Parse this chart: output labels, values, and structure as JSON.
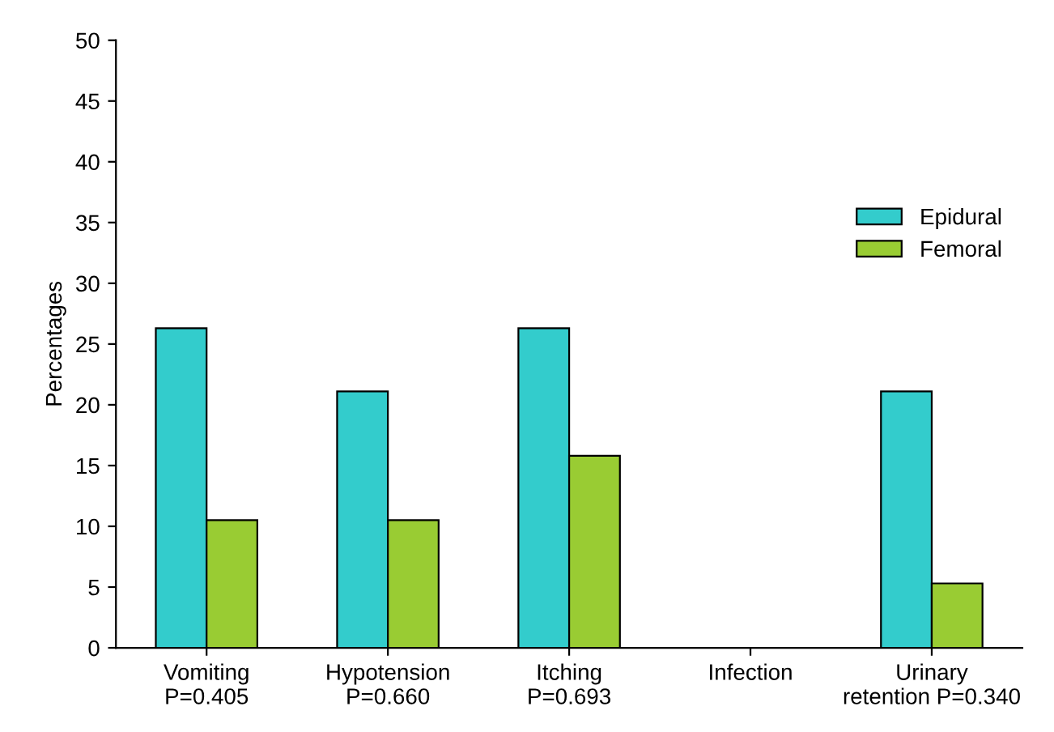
{
  "chart_data": {
    "type": "bar",
    "ylabel": "Percentages",
    "categories": [
      "Vomiting\nP=0.405",
      "Hypotension\nP=0.660",
      "Itching\nP=0.693",
      "Infection",
      "Urinary\nretention P=0.340"
    ],
    "series": [
      {
        "name": "Epidural",
        "color": "#33cccc",
        "values": [
          26.3,
          21.1,
          26.3,
          0,
          21.1
        ]
      },
      {
        "name": "Femoral",
        "color": "#99cc33",
        "values": [
          10.5,
          10.5,
          15.8,
          0,
          5.3
        ]
      }
    ],
    "ylim": [
      0,
      50
    ],
    "yticks": [
      0,
      5,
      10,
      15,
      20,
      25,
      30,
      35,
      40,
      45,
      50
    ],
    "grid": false,
    "legend": "right"
  }
}
